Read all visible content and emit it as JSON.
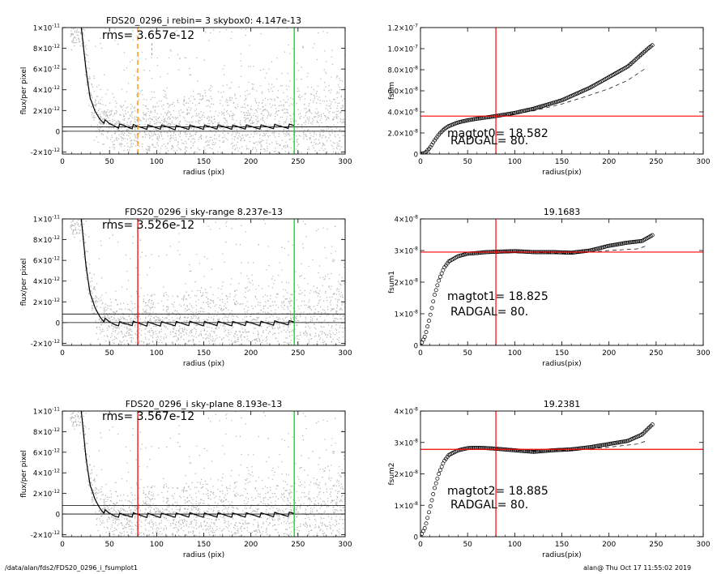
{
  "footer": {
    "path": "/data/alan/fds2/FDS20_0296_i_fsumplot1",
    "stamp": "alan@  Thu Oct 17 11:55:02 2019"
  },
  "colors": {
    "scatter": "#b4b4b4",
    "profile": "#000000",
    "orange_marker": "#ff8c00",
    "red_marker": "#ff0000",
    "green_marker": "#00dd00"
  },
  "chart_data": [
    {
      "id": "left1",
      "type": "scatter",
      "title": "FDS20_0296_i rebin= 3    skybox0:  4.147e-13",
      "annotations": [
        "rms= 3.657e-12"
      ],
      "xlabel": "radius (pix)",
      "ylabel": "flux/per pixel",
      "xlim": [
        0,
        300
      ],
      "ylim": [
        -2.2e-12,
        1e-11
      ],
      "xticks": [
        "0",
        "50",
        "100",
        "150",
        "200",
        "250",
        "300"
      ],
      "yticks": [
        {
          "v": -2e-12,
          "m": "-2×10",
          "e": "-12"
        },
        {
          "v": 0,
          "m": "0",
          "e": ""
        },
        {
          "v": 2e-12,
          "m": "2×10",
          "e": "-12"
        },
        {
          "v": 4e-12,
          "m": "4×10",
          "e": "-12"
        },
        {
          "v": 6e-12,
          "m": "6×10",
          "e": "-12"
        },
        {
          "v": 8e-12,
          "m": "8×10",
          "e": "-12"
        },
        {
          "v": 1e-11,
          "m": "1×10",
          "e": "-11"
        }
      ],
      "hlines": [
        0,
        4.147e-13
      ],
      "vlines": [
        {
          "x": 80,
          "color": "orange",
          "dash": true
        },
        {
          "x": 246,
          "color": "green",
          "dash": false
        }
      ],
      "profile": {
        "x": [
          20,
          25,
          30,
          35,
          40,
          45,
          50,
          55,
          60,
          65,
          70,
          80,
          100,
          120,
          150,
          200,
          230,
          246
        ],
        "y": [
          1e-11,
          6e-12,
          3e-12,
          1.8e-12,
          1.2e-12,
          9e-13,
          6.5e-13,
          6e-13,
          5e-13,
          5e-13,
          4.5e-13,
          4e-13,
          4e-13,
          3.5e-13,
          4e-13,
          4e-13,
          4.5e-13,
          5e-13
        ]
      }
    },
    {
      "id": "left2",
      "type": "scatter",
      "title": "FDS20_0296_i sky-range  8.237e-13",
      "annotations": [
        "rms= 3.526e-12"
      ],
      "xlabel": "radius (pix)",
      "ylabel": "flux/per pixel",
      "xlim": [
        0,
        300
      ],
      "ylim": [
        -2.2e-12,
        1e-11
      ],
      "xticks": [
        "0",
        "50",
        "100",
        "150",
        "200",
        "250",
        "300"
      ],
      "yticks": [
        {
          "v": -2e-12,
          "m": "-2×10",
          "e": "-12"
        },
        {
          "v": 0,
          "m": "0",
          "e": ""
        },
        {
          "v": 2e-12,
          "m": "2×10",
          "e": "-12"
        },
        {
          "v": 4e-12,
          "m": "4×10",
          "e": "-12"
        },
        {
          "v": 6e-12,
          "m": "6×10",
          "e": "-12"
        },
        {
          "v": 8e-12,
          "m": "8×10",
          "e": "-12"
        },
        {
          "v": 1e-11,
          "m": "1×10",
          "e": "-11"
        }
      ],
      "hlines": [
        0,
        8.237e-13
      ],
      "vlines": [
        {
          "x": 80,
          "color": "red",
          "dash": false
        },
        {
          "x": 246,
          "color": "green",
          "dash": false
        }
      ],
      "profile": {
        "x": [
          20,
          25,
          30,
          35,
          40,
          45,
          50,
          55,
          60,
          65,
          70,
          80,
          100,
          120,
          150,
          200,
          230,
          246
        ],
        "y": [
          1e-11,
          5.5e-12,
          2.6e-12,
          1.3e-12,
          6e-13,
          2e-13,
          0,
          -1e-13,
          -1e-13,
          -1.5e-13,
          -1e-13,
          -1e-13,
          -1.5e-13,
          -1e-13,
          -1e-13,
          -1e-13,
          -5e-14,
          0
        ]
      }
    },
    {
      "id": "left3",
      "type": "scatter",
      "title": "FDS20_0296_i sky-plane  8.193e-13",
      "annotations": [
        "rms= 3.567e-12"
      ],
      "xlabel": "radius (pix)",
      "ylabel": "flux/per pixel",
      "xlim": [
        0,
        300
      ],
      "ylim": [
        -2.2e-12,
        1e-11
      ],
      "xticks": [
        "0",
        "50",
        "100",
        "150",
        "200",
        "250",
        "300"
      ],
      "yticks": [
        {
          "v": -2e-12,
          "m": "-2×10",
          "e": "-12"
        },
        {
          "v": 0,
          "m": "0",
          "e": ""
        },
        {
          "v": 2e-12,
          "m": "2×10",
          "e": "-12"
        },
        {
          "v": 4e-12,
          "m": "4×10",
          "e": "-12"
        },
        {
          "v": 6e-12,
          "m": "6×10",
          "e": "-12"
        },
        {
          "v": 8e-12,
          "m": "8×10",
          "e": "-12"
        },
        {
          "v": 1e-11,
          "m": "1×10",
          "e": "-11"
        }
      ],
      "hlines": [
        0,
        8.193e-13
      ],
      "vlines": [
        {
          "x": 80,
          "color": "red",
          "dash": false
        },
        {
          "x": 246,
          "color": "green",
          "dash": false
        }
      ],
      "profile": {
        "x": [
          20,
          25,
          30,
          35,
          40,
          45,
          50,
          55,
          60,
          65,
          70,
          80,
          100,
          120,
          150,
          200,
          230,
          246
        ],
        "y": [
          1e-11,
          5.5e-12,
          2.6e-12,
          1.3e-12,
          6e-13,
          2e-13,
          0,
          -1e-13,
          -1e-13,
          -1.5e-13,
          -1e-13,
          -1e-13,
          -1.5e-13,
          -1e-13,
          -1e-13,
          -1e-13,
          -5e-14,
          0
        ]
      }
    },
    {
      "id": "right1",
      "type": "line",
      "title": "",
      "annotations": [
        "magtot0=  18.582",
        "RADGAL=     80."
      ],
      "xlabel": "radius(pix)",
      "ylabel": "fsum",
      "xlim": [
        0,
        300
      ],
      "ylim": [
        0,
        1.2e-07
      ],
      "xticks": [
        "0",
        "50",
        "100",
        "150",
        "200",
        "250",
        "300"
      ],
      "yticks": [
        {
          "v": 0,
          "m": "0",
          "e": ""
        },
        {
          "v": 2e-08,
          "m": "2.0×10",
          "e": "-8"
        },
        {
          "v": 4e-08,
          "m": "4.0×10",
          "e": "-8"
        },
        {
          "v": 6e-08,
          "m": "6.0×10",
          "e": "-8"
        },
        {
          "v": 8e-08,
          "m": "8.0×10",
          "e": "-8"
        },
        {
          "v": 1e-07,
          "m": "1.0×10",
          "e": "-7"
        },
        {
          "v": 1.2e-07,
          "m": "1.2×10",
          "e": "-7"
        }
      ],
      "hline": 3.6e-08,
      "vline": 80,
      "curve": {
        "x": [
          0,
          5,
          10,
          15,
          20,
          25,
          30,
          40,
          50,
          60,
          80,
          100,
          120,
          150,
          180,
          200,
          220,
          240,
          247
        ],
        "y": [
          0,
          1e-09,
          6e-09,
          1.3e-08,
          1.9e-08,
          2.35e-08,
          2.65e-08,
          3e-08,
          3.2e-08,
          3.35e-08,
          3.6e-08,
          3.9e-08,
          4.3e-08,
          5.1e-08,
          6.3e-08,
          7.3e-08,
          8.3e-08,
          9.9e-08,
          1.04e-07
        ]
      },
      "dashed": {
        "x": [
          80,
          100,
          120,
          150,
          180,
          200,
          220,
          240
        ],
        "y": [
          3.6e-08,
          3.8e-08,
          4.1e-08,
          4.75e-08,
          5.6e-08,
          6.2e-08,
          7e-08,
          8.2e-08
        ]
      }
    },
    {
      "id": "right2",
      "type": "line",
      "title": "19.1683",
      "annotations": [
        "magtot1=  18.825",
        "RADGAL=     80."
      ],
      "xlabel": "radius(pix)",
      "ylabel": "fsum1",
      "xlim": [
        0,
        300
      ],
      "ylim": [
        0,
        4e-08
      ],
      "xticks": [
        "0",
        "50",
        "100",
        "150",
        "200",
        "250",
        "300"
      ],
      "yticks": [
        {
          "v": 0,
          "m": "0",
          "e": ""
        },
        {
          "v": 1e-08,
          "m": "1×10",
          "e": "-8"
        },
        {
          "v": 2e-08,
          "m": "2×10",
          "e": "-8"
        },
        {
          "v": 3e-08,
          "m": "3×10",
          "e": "-8"
        },
        {
          "v": 4e-08,
          "m": "4×10",
          "e": "-8"
        }
      ],
      "hline": 2.95e-08,
      "vline": 80,
      "curve": {
        "x": [
          0,
          5,
          10,
          15,
          20,
          25,
          30,
          40,
          50,
          60,
          70,
          80,
          100,
          120,
          140,
          160,
          180,
          200,
          220,
          235,
          247
        ],
        "y": [
          0,
          3e-09,
          9e-09,
          1.6e-08,
          2.1e-08,
          2.45e-08,
          2.65e-08,
          2.82e-08,
          2.9e-08,
          2.92e-08,
          2.95e-08,
          2.96e-08,
          2.98e-08,
          2.95e-08,
          2.95e-08,
          2.93e-08,
          3e-08,
          3.15e-08,
          3.25e-08,
          3.3e-08,
          3.5e-08
        ]
      },
      "dashed": {
        "x": [
          80,
          120,
          160,
          200,
          230,
          240
        ],
        "y": [
          2.96e-08,
          2.94e-08,
          2.9e-08,
          3e-08,
          3.05e-08,
          3.15e-08
        ]
      }
    },
    {
      "id": "right3",
      "type": "line",
      "title": "19.2381",
      "annotations": [
        "magtot2=  18.885",
        "RADGAL=     80."
      ],
      "xlabel": "radius(pix)",
      "ylabel": "fsum2",
      "xlim": [
        0,
        300
      ],
      "ylim": [
        0,
        4e-08
      ],
      "xticks": [
        "0",
        "50",
        "100",
        "150",
        "200",
        "250",
        "300"
      ],
      "yticks": [
        {
          "v": 0,
          "m": "0",
          "e": ""
        },
        {
          "v": 1e-08,
          "m": "1×10",
          "e": "-8"
        },
        {
          "v": 2e-08,
          "m": "2×10",
          "e": "-8"
        },
        {
          "v": 3e-08,
          "m": "3×10",
          "e": "-8"
        },
        {
          "v": 4e-08,
          "m": "4×10",
          "e": "-8"
        }
      ],
      "hline": 2.78e-08,
      "vline": 80,
      "curve": {
        "x": [
          0,
          5,
          10,
          15,
          20,
          25,
          30,
          40,
          50,
          60,
          70,
          80,
          100,
          120,
          140,
          160,
          180,
          200,
          220,
          235,
          247
        ],
        "y": [
          0,
          3e-09,
          9e-09,
          1.55e-08,
          2.05e-08,
          2.4e-08,
          2.6e-08,
          2.75e-08,
          2.82e-08,
          2.83e-08,
          2.82e-08,
          2.8e-08,
          2.75e-08,
          2.7e-08,
          2.75e-08,
          2.78e-08,
          2.85e-08,
          2.95e-08,
          3.05e-08,
          3.25e-08,
          3.6e-08
        ]
      },
      "dashed": {
        "x": [
          80,
          120,
          160,
          200,
          230,
          240
        ],
        "y": [
          2.8e-08,
          2.72e-08,
          2.75e-08,
          2.85e-08,
          2.95e-08,
          3.05e-08
        ]
      }
    }
  ]
}
